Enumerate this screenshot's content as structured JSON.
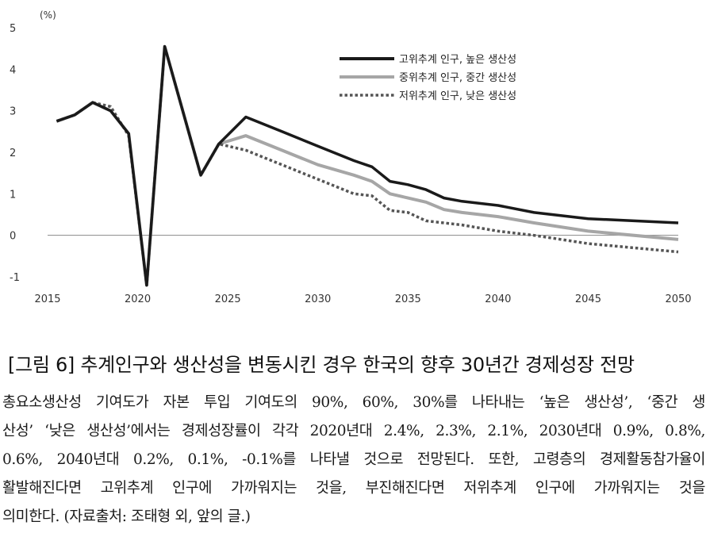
{
  "chart_data": {
    "type": "line",
    "unit_label": "(%)",
    "x_ticks": [
      "2015",
      "2020",
      "2025",
      "2030",
      "2035",
      "2040",
      "2045",
      "2050"
    ],
    "y_ticks": [
      "5",
      "4",
      "3",
      "2",
      "1",
      "0",
      "-1"
    ],
    "xlim": [
      2015,
      2050
    ],
    "ylim": [
      -1,
      5
    ],
    "legend_position": "top-right",
    "series": [
      {
        "name": "고위추계 인구, 높은 생산성",
        "style": "solid",
        "color": "#1a1a1a",
        "x": [
          2015.5,
          2016.5,
          2017.5,
          2018.5,
          2019.5,
          2020.5,
          2021.5,
          2023.5,
          2024.5,
          2026,
          2028,
          2030,
          2032,
          2033,
          2034,
          2035,
          2036,
          2037,
          2038,
          2040,
          2042,
          2045,
          2050
        ],
        "values": [
          2.75,
          2.9,
          3.2,
          3.0,
          2.45,
          -1.2,
          4.55,
          1.45,
          2.2,
          2.85,
          2.5,
          2.15,
          1.8,
          1.65,
          1.3,
          1.22,
          1.1,
          0.9,
          0.82,
          0.72,
          0.55,
          0.4,
          0.3
        ]
      },
      {
        "name": "중위추계 인구, 중간 생산성",
        "style": "solid",
        "color": "#a6a6a6",
        "x": [
          2015.5,
          2016.5,
          2017.5,
          2018.5,
          2019.5,
          2020.5,
          2021.5,
          2023.5,
          2024.5,
          2026,
          2028,
          2030,
          2032,
          2033,
          2034,
          2035,
          2036,
          2037,
          2038,
          2040,
          2042,
          2045,
          2050
        ],
        "values": [
          2.75,
          2.9,
          3.2,
          3.0,
          2.45,
          -1.2,
          4.55,
          1.45,
          2.2,
          2.4,
          2.05,
          1.7,
          1.45,
          1.3,
          1.0,
          0.9,
          0.8,
          0.62,
          0.55,
          0.45,
          0.3,
          0.1,
          -0.1
        ]
      },
      {
        "name": "저위추계 인구, 낮은 생산성",
        "style": "dotted",
        "color": "#555555",
        "x": [
          2015.5,
          2016.5,
          2017.5,
          2018.5,
          2019.5,
          2020.5,
          2021.5,
          2023.5,
          2024.5,
          2026,
          2028,
          2030,
          2032,
          2033,
          2034,
          2035,
          2036,
          2037,
          2038,
          2040,
          2042,
          2045,
          2050
        ],
        "values": [
          2.75,
          2.9,
          3.2,
          3.1,
          2.4,
          -1.2,
          4.55,
          1.45,
          2.2,
          2.05,
          1.7,
          1.35,
          1.0,
          0.95,
          0.6,
          0.55,
          0.35,
          0.3,
          0.25,
          0.1,
          0.0,
          -0.2,
          -0.4
        ]
      }
    ]
  },
  "caption": "[그림 6] 추계인구와 생산성을 변동시킨 경우 한국의 향후 30년간 경제성장 전망",
  "body_lines": [
    "총요소생산성 기여도가 자본 투입 기여도의 90%, 60%, 30%를 나타내는 ‘높은 생산성’, ‘중간 생",
    "산성’ ‘낮은 생산성’에서는 경제성장률이 각각 2020년대 2.4%, 2.3%, 2.1%, 2030년대 0.9%, 0.8%,",
    "0.6%, 2040년대 0.2%, 0.1%, -0.1%를 나타낼 것으로 전망된다. 또한, 고령층의 경제활동참가율이",
    "활발해진다면 고위추계 인구에 가까워지는 것을, 부진해진다면 저위추계 인구에 가까워지는 것을",
    "의미한다. (자료출처: 조태형 외, 앞의 글.)"
  ]
}
